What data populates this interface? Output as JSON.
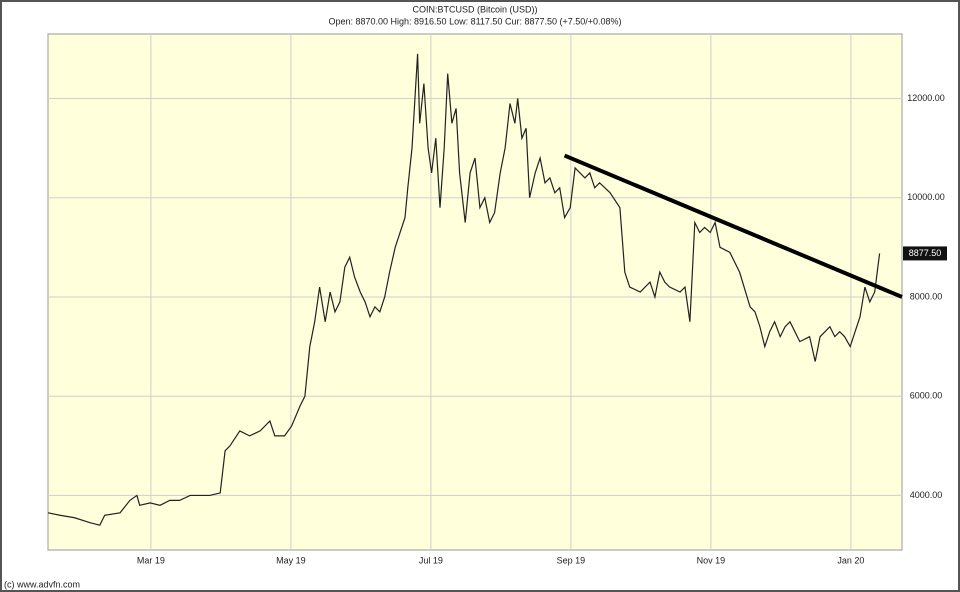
{
  "chart_data": {
    "type": "line",
    "title": "COIN:BTCUSD (Bitcoin (USD))",
    "subtitle": "Open: 8870.00 High: 8916.50 Low: 8117.50 Cur: 8877.50 (+7.50/+0.08%)",
    "footer": "(c) www.advfn.com",
    "x": [
      0.53,
      0.7,
      0.91,
      1.13,
      1.27,
      1.34,
      1.56,
      1.7,
      1.8,
      1.84,
      1.99,
      2.13,
      2.27,
      2.41,
      2.56,
      2.7,
      2.84,
      2.99,
      3.06,
      3.13,
      3.27,
      3.41,
      3.56,
      3.7,
      3.77,
      3.91,
      4.01,
      4.13,
      4.2,
      4.27,
      4.34,
      4.41,
      4.49,
      4.56,
      4.63,
      4.7,
      4.77,
      4.84,
      4.91,
      4.99,
      5.06,
      5.13,
      5.2,
      5.27,
      5.34,
      5.41,
      5.49,
      5.56,
      5.63,
      5.67,
      5.73,
      5.81,
      5.84,
      5.9,
      5.96,
      6.01,
      6.07,
      6.13,
      6.19,
      6.24,
      6.3,
      6.36,
      6.41,
      6.49,
      6.56,
      6.63,
      6.7,
      6.77,
      6.84,
      6.91,
      6.99,
      7.06,
      7.13,
      7.2,
      7.24,
      7.3,
      7.36,
      7.41,
      7.49,
      7.56,
      7.63,
      7.7,
      7.77,
      7.84,
      7.91,
      7.99,
      8.06,
      8.13,
      8.2,
      8.27,
      8.34,
      8.41,
      8.56,
      8.7,
      8.77,
      8.84,
      8.99,
      9.13,
      9.2,
      9.27,
      9.34,
      9.41,
      9.56,
      9.63,
      9.7,
      9.77,
      9.84,
      9.91,
      9.99,
      10.06,
      10.13,
      10.27,
      10.41,
      10.56,
      10.63,
      10.7,
      10.77,
      10.84,
      10.91,
      10.99,
      11.06,
      11.13,
      11.2,
      11.27,
      11.41,
      11.49,
      11.56,
      11.63,
      11.7,
      11.77,
      11.84,
      11.91,
      11.99,
      12.06,
      12.13,
      12.2,
      12.27,
      12.34,
      12.41
    ],
    "series": [
      {
        "color": "#222222",
        "values": [
          3650,
          3600,
          3550,
          3450,
          3400,
          3600,
          3650,
          3900,
          4000,
          3800,
          3850,
          3800,
          3900,
          3900,
          4000,
          4000,
          4000,
          4050,
          4900,
          5000,
          5300,
          5200,
          5300,
          5500,
          5200,
          5200,
          5400,
          5800,
          6000,
          7000,
          7500,
          8200,
          7500,
          8100,
          7700,
          7900,
          8600,
          8800,
          8400,
          8100,
          7900,
          7600,
          7800,
          7700,
          8000,
          8500,
          9000,
          9300,
          9600,
          10200,
          11000,
          12900,
          11500,
          12300,
          11000,
          10500,
          11200,
          9800,
          11000,
          12500,
          11500,
          11800,
          10500,
          9500,
          10500,
          10800,
          9800,
          10000,
          9500,
          9700,
          10500,
          11000,
          11900,
          11500,
          12000,
          11200,
          11400,
          10000,
          10500,
          10800,
          10300,
          10400,
          10100,
          10200,
          9600,
          9800,
          10600,
          10500,
          10400,
          10500,
          10200,
          10300,
          10100,
          9800,
          8500,
          8200,
          8100,
          8300,
          8000,
          8500,
          8300,
          8200,
          8100,
          8200,
          7500,
          9500,
          9300,
          9400,
          9300,
          9500,
          9000,
          8900,
          8500,
          7800,
          7700,
          7400,
          7000,
          7300,
          7500,
          7200,
          7400,
          7500,
          7300,
          7100,
          7200,
          6700,
          7200,
          7300,
          7400,
          7200,
          7300,
          7200,
          7000,
          7300,
          7600,
          8200,
          7900,
          8100,
          8877.5
        ]
      }
    ],
    "last_value_label": "8877.50",
    "trendline": {
      "color": "#000000",
      "x": [
        7.91,
        12.73
      ],
      "values": [
        10850,
        8000
      ]
    },
    "xlim": [
      0.53,
      12.73
    ],
    "xticks": [
      {
        "value": 2,
        "label": "Mar 19"
      },
      {
        "value": 4,
        "label": "May 19"
      },
      {
        "value": 6,
        "label": "Jul 19"
      },
      {
        "value": 8,
        "label": "Sep 19"
      },
      {
        "value": 10,
        "label": "Nov 19"
      },
      {
        "value": 12,
        "label": "Jan 20"
      }
    ],
    "ylim": [
      2900,
      13300
    ],
    "yticks": [
      {
        "value": 4000,
        "label": "4000.00"
      },
      {
        "value": 6000,
        "label": "6000.00"
      },
      {
        "value": 8000,
        "label": "8000.00"
      },
      {
        "value": 10000,
        "label": "10000.00"
      },
      {
        "value": 12000,
        "label": "12000.00"
      }
    ],
    "grid": true,
    "plot_background": "#ffffdc"
  }
}
